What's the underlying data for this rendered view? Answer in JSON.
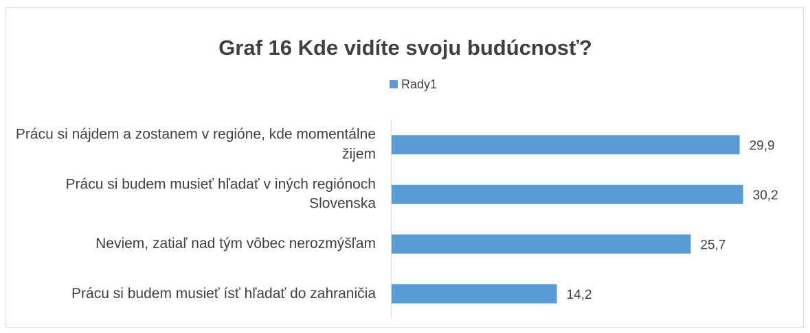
{
  "chart_data": {
    "type": "bar",
    "orientation": "horizontal",
    "title": "Graf 16 Kde vidíte svoju budúcnosť?",
    "categories": [
      "Prácu si nájdem a zostanem v regióne, kde momentálne žijem",
      "Prácu si budem musieť hľadať v iných regiónoch Slovenska",
      "Neviem, zatiaľ nad tým vôbec nerozmýšľam",
      "Prácu si budem musieť ísť hľadať do zahraničia"
    ],
    "series": [
      {
        "name": "Rady1",
        "color": "#5b9bd5",
        "values": [
          29.9,
          30.2,
          25.7,
          14.2
        ],
        "value_labels": [
          "29,9",
          "30,2",
          "25,7",
          "14,2"
        ]
      }
    ],
    "xlim": [
      0,
      35
    ],
    "legend": "top"
  }
}
